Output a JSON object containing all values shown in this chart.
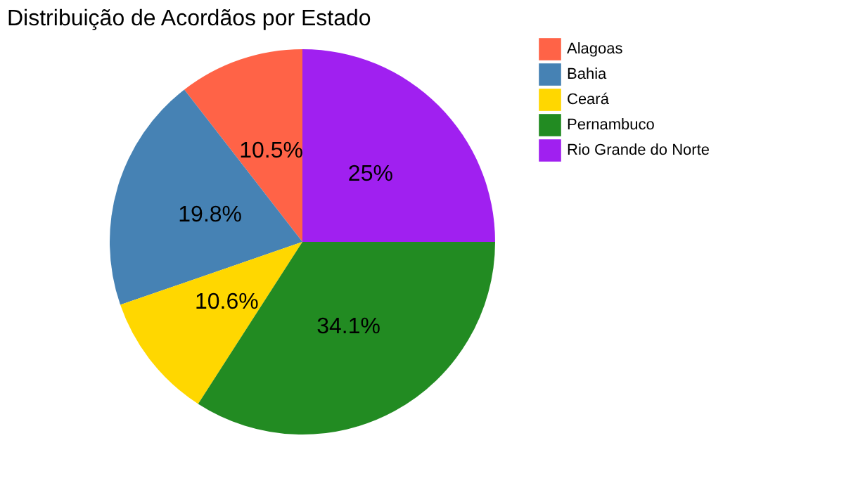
{
  "chart_data": {
    "type": "pie",
    "title": "Distribuição de Acordãos por Estado",
    "categories": [
      "Alagoas",
      "Bahia",
      "Ceará",
      "Pernambuco",
      "Rio Grande do Norte"
    ],
    "values": [
      10.5,
      19.8,
      10.6,
      34.1,
      25
    ],
    "value_labels": [
      "10.5%",
      "19.8%",
      "10.6%",
      "34.1%",
      "25%"
    ],
    "colors": [
      "#ff6347",
      "#4682b4",
      "#ffd700",
      "#228b22",
      "#a020f0"
    ],
    "legend": "right"
  }
}
